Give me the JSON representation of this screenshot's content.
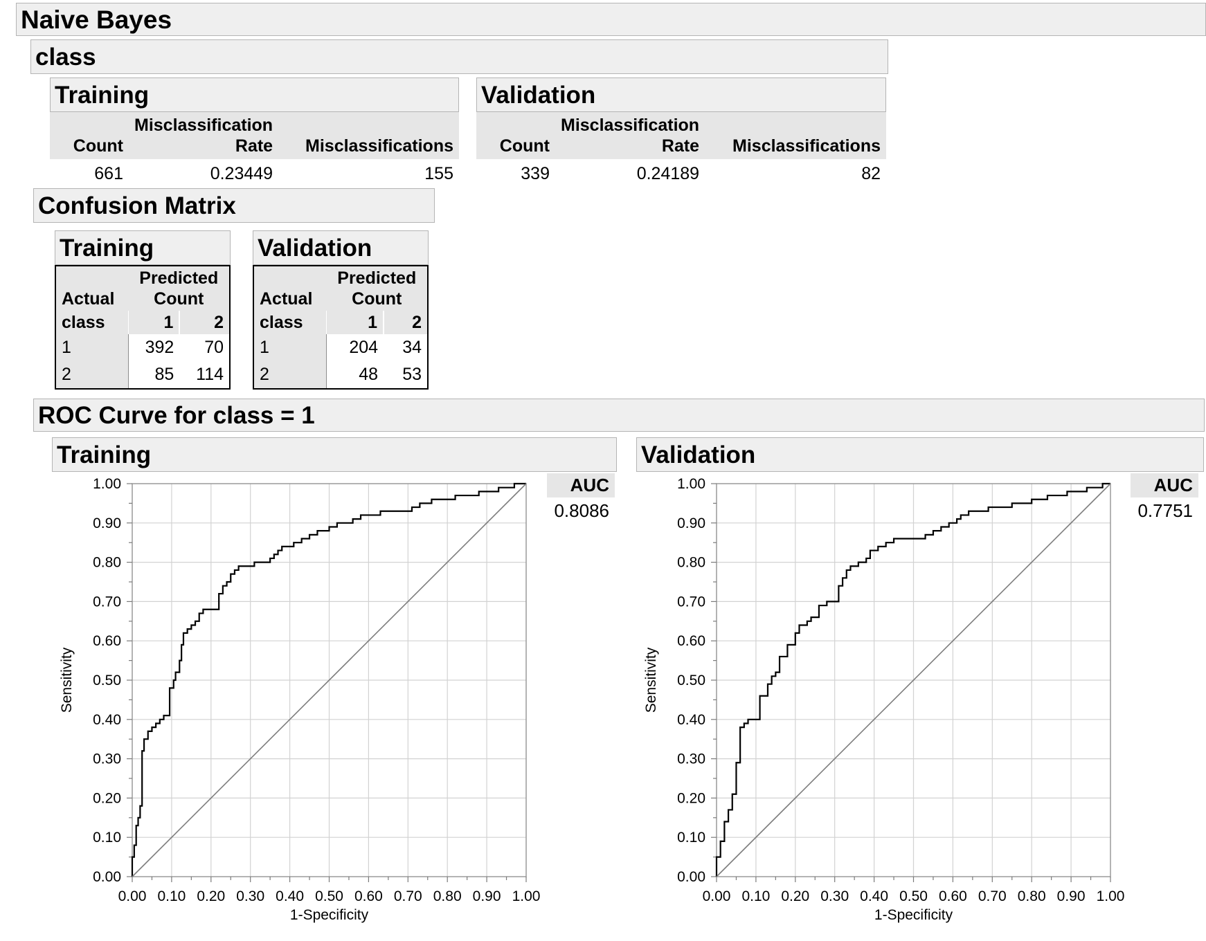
{
  "report": {
    "title": "Naive Bayes",
    "class_title": "class",
    "fit_tables": [
      {
        "title": "Training",
        "headers": {
          "count": "Count",
          "rate_line1": "Misclassification",
          "rate_line2": "Rate",
          "miscl": "Misclassifications"
        },
        "count": "661",
        "rate": "0.23449",
        "miscl": "155"
      },
      {
        "title": "Validation",
        "headers": {
          "count": "Count",
          "rate_line1": "Misclassification",
          "rate_line2": "Rate",
          "miscl": "Misclassifications"
        },
        "count": "339",
        "rate": "0.24189",
        "miscl": "82"
      }
    ],
    "confusion_title": "Confusion Matrix",
    "confusion": [
      {
        "title": "Training",
        "hdr_actual": "Actual",
        "hdr_predicted": "Predicted",
        "hdr_count": "Count",
        "hdr_class": "class",
        "pred_levels": [
          "1",
          "2"
        ],
        "rows": [
          {
            "label": "1",
            "c1": "392",
            "c2": "70"
          },
          {
            "label": "2",
            "c1": "85",
            "c2": "114"
          }
        ]
      },
      {
        "title": "Validation",
        "hdr_actual": "Actual",
        "hdr_predicted": "Predicted",
        "hdr_count": "Count",
        "hdr_class": "class",
        "pred_levels": [
          "1",
          "2"
        ],
        "rows": [
          {
            "label": "1",
            "c1": "204",
            "c2": "34"
          },
          {
            "label": "2",
            "c1": "48",
            "c2": "53"
          }
        ]
      }
    ],
    "roc_title": "ROC Curve for class = 1"
  },
  "chart_data": [
    {
      "type": "line",
      "panel_title": "Training",
      "xlabel": "1-Specificity",
      "ylabel": "Sensitivity",
      "xlim": [
        0,
        1
      ],
      "ylim": [
        0,
        1
      ],
      "ticks": [
        "0.00",
        "0.10",
        "0.20",
        "0.30",
        "0.40",
        "0.50",
        "0.60",
        "0.70",
        "0.80",
        "0.90",
        "1.00"
      ],
      "grid": true,
      "auc_label": "AUC",
      "auc": "0.8086",
      "series": [
        {
          "values": [
            [
              0,
              0
            ],
            [
              0,
              0.05
            ],
            [
              0.005,
              0.05
            ],
            [
              0.005,
              0.08
            ],
            [
              0.01,
              0.08
            ],
            [
              0.01,
              0.13
            ],
            [
              0.015,
              0.13
            ],
            [
              0.015,
              0.15
            ],
            [
              0.02,
              0.15
            ],
            [
              0.02,
              0.18
            ],
            [
              0.025,
              0.18
            ],
            [
              0.025,
              0.32
            ],
            [
              0.03,
              0.32
            ],
            [
              0.03,
              0.35
            ],
            [
              0.04,
              0.35
            ],
            [
              0.04,
              0.37
            ],
            [
              0.05,
              0.37
            ],
            [
              0.05,
              0.38
            ],
            [
              0.06,
              0.38
            ],
            [
              0.06,
              0.39
            ],
            [
              0.07,
              0.39
            ],
            [
              0.07,
              0.4
            ],
            [
              0.08,
              0.4
            ],
            [
              0.08,
              0.41
            ],
            [
              0.095,
              0.41
            ],
            [
              0.095,
              0.48
            ],
            [
              0.105,
              0.48
            ],
            [
              0.105,
              0.5
            ],
            [
              0.11,
              0.5
            ],
            [
              0.11,
              0.52
            ],
            [
              0.12,
              0.52
            ],
            [
              0.12,
              0.55
            ],
            [
              0.125,
              0.55
            ],
            [
              0.125,
              0.59
            ],
            [
              0.13,
              0.59
            ],
            [
              0.13,
              0.62
            ],
            [
              0.14,
              0.62
            ],
            [
              0.14,
              0.63
            ],
            [
              0.15,
              0.63
            ],
            [
              0.15,
              0.64
            ],
            [
              0.16,
              0.64
            ],
            [
              0.16,
              0.65
            ],
            [
              0.17,
              0.65
            ],
            [
              0.17,
              0.67
            ],
            [
              0.18,
              0.67
            ],
            [
              0.18,
              0.68
            ],
            [
              0.22,
              0.68
            ],
            [
              0.22,
              0.72
            ],
            [
              0.23,
              0.72
            ],
            [
              0.23,
              0.74
            ],
            [
              0.24,
              0.74
            ],
            [
              0.24,
              0.75
            ],
            [
              0.25,
              0.75
            ],
            [
              0.25,
              0.77
            ],
            [
              0.26,
              0.77
            ],
            [
              0.26,
              0.78
            ],
            [
              0.27,
              0.78
            ],
            [
              0.27,
              0.79
            ],
            [
              0.31,
              0.79
            ],
            [
              0.31,
              0.8
            ],
            [
              0.35,
              0.8
            ],
            [
              0.35,
              0.81
            ],
            [
              0.36,
              0.81
            ],
            [
              0.36,
              0.82
            ],
            [
              0.37,
              0.82
            ],
            [
              0.37,
              0.83
            ],
            [
              0.38,
              0.83
            ],
            [
              0.38,
              0.84
            ],
            [
              0.41,
              0.84
            ],
            [
              0.41,
              0.85
            ],
            [
              0.43,
              0.85
            ],
            [
              0.43,
              0.86
            ],
            [
              0.45,
              0.86
            ],
            [
              0.45,
              0.87
            ],
            [
              0.47,
              0.87
            ],
            [
              0.47,
              0.88
            ],
            [
              0.5,
              0.88
            ],
            [
              0.5,
              0.89
            ],
            [
              0.52,
              0.89
            ],
            [
              0.52,
              0.9
            ],
            [
              0.56,
              0.9
            ],
            [
              0.56,
              0.91
            ],
            [
              0.58,
              0.91
            ],
            [
              0.58,
              0.92
            ],
            [
              0.63,
              0.92
            ],
            [
              0.63,
              0.93
            ],
            [
              0.71,
              0.93
            ],
            [
              0.71,
              0.94
            ],
            [
              0.73,
              0.94
            ],
            [
              0.73,
              0.95
            ],
            [
              0.76,
              0.95
            ],
            [
              0.76,
              0.96
            ],
            [
              0.82,
              0.96
            ],
            [
              0.82,
              0.97
            ],
            [
              0.88,
              0.97
            ],
            [
              0.88,
              0.98
            ],
            [
              0.93,
              0.98
            ],
            [
              0.93,
              0.99
            ],
            [
              0.97,
              0.99
            ],
            [
              0.97,
              1.0
            ],
            [
              1.0,
              1.0
            ]
          ]
        },
        {
          "values": [
            [
              0,
              0
            ],
            [
              1,
              1
            ]
          ]
        }
      ]
    },
    {
      "type": "line",
      "panel_title": "Validation",
      "xlabel": "1-Specificity",
      "ylabel": "Sensitivity",
      "xlim": [
        0,
        1
      ],
      "ylim": [
        0,
        1
      ],
      "ticks": [
        "0.00",
        "0.10",
        "0.20",
        "0.30",
        "0.40",
        "0.50",
        "0.60",
        "0.70",
        "0.80",
        "0.90",
        "1.00"
      ],
      "grid": true,
      "auc_label": "AUC",
      "auc": "0.7751",
      "series": [
        {
          "values": [
            [
              0,
              0
            ],
            [
              0,
              0.05
            ],
            [
              0.01,
              0.05
            ],
            [
              0.01,
              0.09
            ],
            [
              0.02,
              0.09
            ],
            [
              0.02,
              0.14
            ],
            [
              0.03,
              0.14
            ],
            [
              0.03,
              0.17
            ],
            [
              0.04,
              0.17
            ],
            [
              0.04,
              0.21
            ],
            [
              0.05,
              0.21
            ],
            [
              0.05,
              0.29
            ],
            [
              0.06,
              0.29
            ],
            [
              0.06,
              0.38
            ],
            [
              0.07,
              0.38
            ],
            [
              0.07,
              0.39
            ],
            [
              0.08,
              0.39
            ],
            [
              0.08,
              0.4
            ],
            [
              0.11,
              0.4
            ],
            [
              0.11,
              0.46
            ],
            [
              0.13,
              0.46
            ],
            [
              0.13,
              0.49
            ],
            [
              0.14,
              0.49
            ],
            [
              0.14,
              0.51
            ],
            [
              0.15,
              0.51
            ],
            [
              0.15,
              0.52
            ],
            [
              0.16,
              0.52
            ],
            [
              0.16,
              0.56
            ],
            [
              0.18,
              0.56
            ],
            [
              0.18,
              0.59
            ],
            [
              0.2,
              0.59
            ],
            [
              0.2,
              0.62
            ],
            [
              0.21,
              0.62
            ],
            [
              0.21,
              0.64
            ],
            [
              0.23,
              0.64
            ],
            [
              0.23,
              0.65
            ],
            [
              0.24,
              0.65
            ],
            [
              0.24,
              0.66
            ],
            [
              0.26,
              0.66
            ],
            [
              0.26,
              0.69
            ],
            [
              0.28,
              0.69
            ],
            [
              0.28,
              0.7
            ],
            [
              0.31,
              0.7
            ],
            [
              0.31,
              0.74
            ],
            [
              0.32,
              0.74
            ],
            [
              0.32,
              0.76
            ],
            [
              0.33,
              0.76
            ],
            [
              0.33,
              0.78
            ],
            [
              0.34,
              0.78
            ],
            [
              0.34,
              0.79
            ],
            [
              0.36,
              0.79
            ],
            [
              0.36,
              0.8
            ],
            [
              0.38,
              0.8
            ],
            [
              0.38,
              0.81
            ],
            [
              0.39,
              0.81
            ],
            [
              0.39,
              0.83
            ],
            [
              0.41,
              0.83
            ],
            [
              0.41,
              0.84
            ],
            [
              0.43,
              0.84
            ],
            [
              0.43,
              0.85
            ],
            [
              0.45,
              0.85
            ],
            [
              0.45,
              0.86
            ],
            [
              0.53,
              0.86
            ],
            [
              0.53,
              0.87
            ],
            [
              0.55,
              0.87
            ],
            [
              0.55,
              0.88
            ],
            [
              0.57,
              0.88
            ],
            [
              0.57,
              0.89
            ],
            [
              0.59,
              0.89
            ],
            [
              0.59,
              0.9
            ],
            [
              0.61,
              0.9
            ],
            [
              0.61,
              0.91
            ],
            [
              0.62,
              0.91
            ],
            [
              0.62,
              0.92
            ],
            [
              0.64,
              0.92
            ],
            [
              0.64,
              0.93
            ],
            [
              0.69,
              0.93
            ],
            [
              0.69,
              0.94
            ],
            [
              0.75,
              0.94
            ],
            [
              0.75,
              0.95
            ],
            [
              0.8,
              0.95
            ],
            [
              0.8,
              0.96
            ],
            [
              0.84,
              0.96
            ],
            [
              0.84,
              0.97
            ],
            [
              0.89,
              0.97
            ],
            [
              0.89,
              0.98
            ],
            [
              0.94,
              0.98
            ],
            [
              0.94,
              0.99
            ],
            [
              0.98,
              0.99
            ],
            [
              0.98,
              1.0
            ],
            [
              1.0,
              1.0
            ]
          ]
        },
        {
          "values": [
            [
              0,
              0
            ],
            [
              1,
              1
            ]
          ]
        }
      ]
    }
  ]
}
